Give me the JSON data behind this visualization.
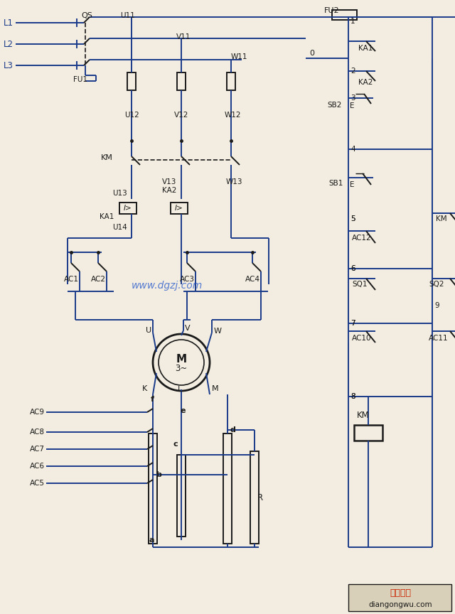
{
  "bg_color": "#f2ede0",
  "lc": "#1a1a1a",
  "bl": "#1a3a8a",
  "wm_color": "#2255cc",
  "watermark": "www.dgzj.com",
  "footer_text1": "电工之屋",
  "footer_text2": "diangongwu.com",
  "footer_color": "#cc2200"
}
